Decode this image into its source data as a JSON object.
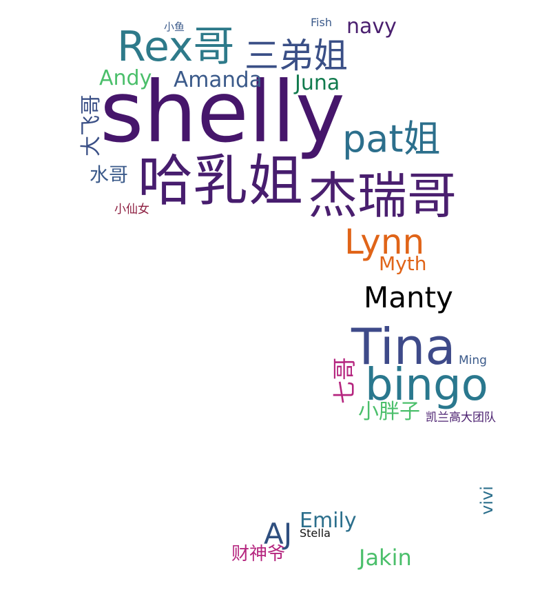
{
  "words": [
    {
      "text": "shelly",
      "color": "#46166b"
    },
    {
      "text": "哈乳姐",
      "color": "#471d6e"
    },
    {
      "text": "杰瑞哥",
      "color": "#4a1f6f"
    },
    {
      "text": "Rex哥",
      "color": "#2e7a8a"
    },
    {
      "text": "三弟姐",
      "color": "#3a4f86"
    },
    {
      "text": "pat姐",
      "color": "#2c6f8c"
    },
    {
      "text": "Tina",
      "color": "#3e4a89"
    },
    {
      "text": "bingo",
      "color": "#2a788e"
    },
    {
      "text": "Lynn",
      "color": "#e06418"
    },
    {
      "text": "Manty",
      "color": "#000000"
    },
    {
      "text": "Amanda",
      "color": "#3b5a8a"
    },
    {
      "text": "Andy",
      "color": "#4bbf6b"
    },
    {
      "text": "Juna",
      "color": "#107a4d"
    },
    {
      "text": "navy",
      "color": "#4a1f6f"
    },
    {
      "text": "大飞哥",
      "color": "#3a4f86"
    },
    {
      "text": "水哥",
      "color": "#3b5a8a"
    },
    {
      "text": "小仙女",
      "color": "#8c1d3f"
    },
    {
      "text": "Myth",
      "color": "#e06418"
    },
    {
      "text": "七哥",
      "color": "#b5267f"
    },
    {
      "text": "小胖子",
      "color": "#4bbf6b"
    },
    {
      "text": "凯兰高大团队",
      "color": "#4a1f6f"
    },
    {
      "text": "Ming",
      "color": "#3b5a8a"
    },
    {
      "text": "vivi",
      "color": "#2c6f8c"
    },
    {
      "text": "Emily",
      "color": "#2c6f8c"
    },
    {
      "text": "AJ",
      "color": "#2f4f7f"
    },
    {
      "text": "Stella",
      "color": "#111111"
    },
    {
      "text": "财神爷",
      "color": "#b5267f"
    },
    {
      "text": "Jakin",
      "color": "#4bbf6b"
    },
    {
      "text": "小鱼",
      "color": "#3b5a8a"
    },
    {
      "text": "Fish",
      "color": "#3b5a8a"
    }
  ]
}
